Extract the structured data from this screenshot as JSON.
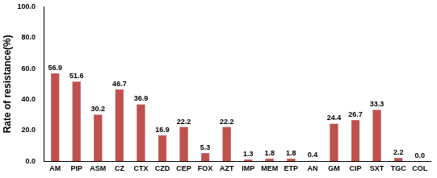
{
  "chart_data": {
    "type": "bar",
    "y_label": "Rate of resistance(%)",
    "categories": [
      "AM",
      "PIP",
      "ASM",
      "CZ",
      "CTX",
      "CZD",
      "CEP",
      "FOX",
      "AZT",
      "IMP",
      "MEM",
      "ETP",
      "AN",
      "GM",
      "CIP",
      "SXT",
      "TGC",
      "COL"
    ],
    "values": [
      56.9,
      51.6,
      30.2,
      46.7,
      36.9,
      16.9,
      22.2,
      5.3,
      22.2,
      1.3,
      1.8,
      1.8,
      0.4,
      24.4,
      26.7,
      33.3,
      2.2,
      0.0
    ],
    "value_labels": [
      "56.9",
      "51.6",
      "30.2",
      "46.7",
      "36.9",
      "16.9",
      "22.2",
      "5.3",
      "22.2",
      "1.3",
      "1.8",
      "1.8",
      "0.4",
      "24.4",
      "26.7",
      "33.3",
      "2.2",
      "0.0"
    ],
    "color": "#c0504d",
    "ylim": [
      0,
      100
    ],
    "yticks": [
      {
        "value": 0,
        "label": "0.0"
      },
      {
        "value": 20,
        "label": "20.0"
      },
      {
        "value": 40,
        "label": "40.0"
      },
      {
        "value": 60,
        "label": "60.0"
      },
      {
        "value": 80,
        "label": "80.0"
      },
      {
        "value": 100,
        "label": "100.0"
      }
    ],
    "grid": false,
    "data_labels": true
  }
}
